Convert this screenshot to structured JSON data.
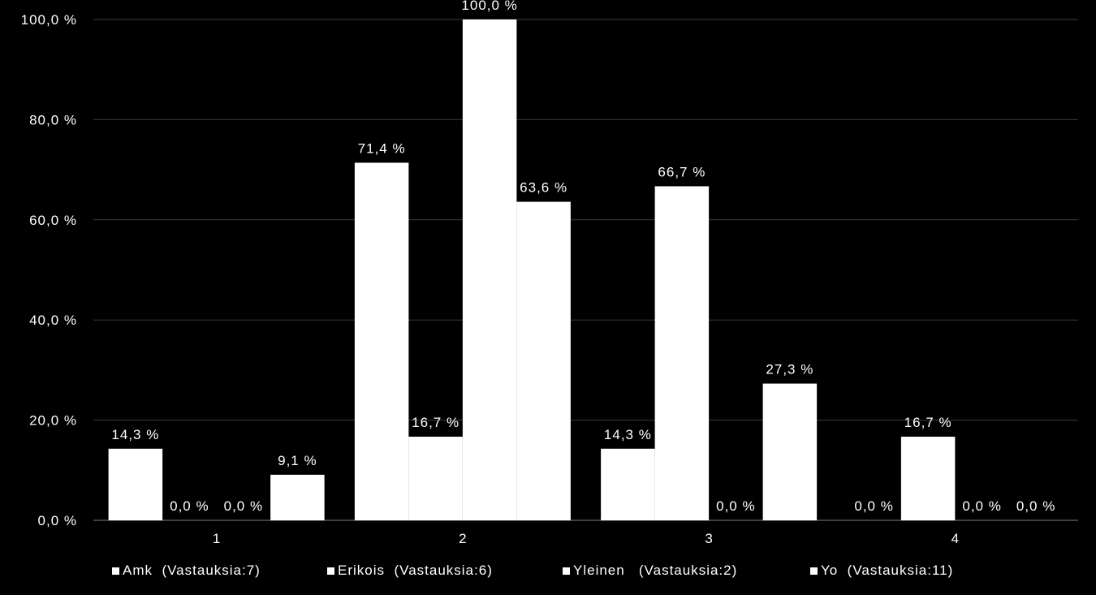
{
  "chart_data": {
    "type": "bar",
    "categories": [
      "1",
      "2",
      "3",
      "4"
    ],
    "ylim": [
      0,
      100
    ],
    "yticks": [
      "0,0 %",
      "20,0 %",
      "40,0 %",
      "60,0 %",
      "80,0 %",
      "100,0 %"
    ],
    "grid": true,
    "legend_position": "bottom",
    "bar_color": "#ffffff",
    "series": [
      {
        "name": "Amk  (Vastauksia:7)",
        "values": [
          14.3,
          71.4,
          14.3,
          0.0
        ],
        "labels": [
          "14,3 %",
          "71,4 %",
          "14,3 %",
          "0,0 %"
        ]
      },
      {
        "name": "Erikois  (Vastauksia:6)",
        "values": [
          0.0,
          16.7,
          66.7,
          16.7
        ],
        "labels": [
          "0,0 %",
          "16,7 %",
          "66,7 %",
          "16,7 %"
        ]
      },
      {
        "name": "Yleinen   (Vastauksia:2)",
        "values": [
          0.0,
          100.0,
          0.0,
          0.0
        ],
        "labels": [
          "0,0 %",
          "100,0 %",
          "0,0 %",
          "0,0 %"
        ]
      },
      {
        "name": "Yo  (Vastauksia:11)",
        "values": [
          9.1,
          63.6,
          27.3,
          0.0
        ],
        "labels": [
          "9,1 %",
          "63,6 %",
          "27,3 %",
          "0,0 %"
        ]
      }
    ]
  }
}
